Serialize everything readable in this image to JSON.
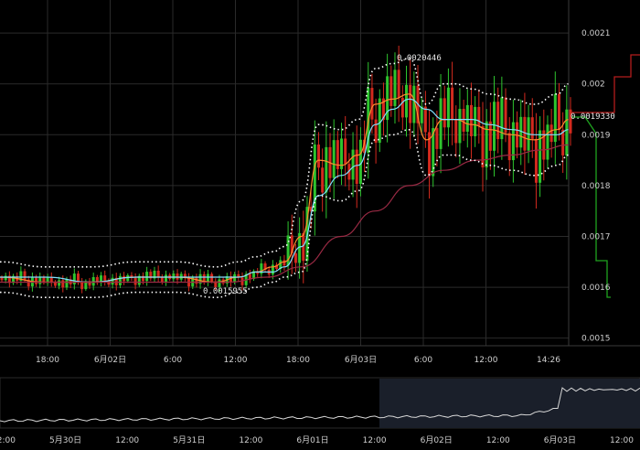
{
  "chart_data": {
    "type": "candlestick",
    "title": "",
    "price_axis": {
      "ticks": [
        "0.0015",
        "0.0016",
        "0.0017",
        "0.0018",
        "0.0019",
        "0.002",
        "0.0021"
      ],
      "ylim": [
        0.001485,
        0.002165
      ]
    },
    "time_axis": {
      "ticks": [
        "18:00",
        "6月02日",
        "6:00",
        "12:00",
        "18:00",
        "6月03日",
        "6:00",
        "12:00",
        "14:26"
      ]
    },
    "price_label": "0.0019330",
    "high_label": "0.0020446",
    "low_label": "0.0015955",
    "colors": {
      "up": "#2ec42e",
      "down": "#d42a1e",
      "ma_fast": "#ff8c2e",
      "ma_mid": "#7fe0ff",
      "ma_slow": "#9a2a44",
      "band": "#ffffff",
      "depth_bid": "#1fa31f",
      "depth_ask": "#b31c1c",
      "grid": "#2a2a2a"
    },
    "series": [
      {
        "x": [
          0,
          0.08,
          0.16,
          0.24,
          0.31,
          0.38,
          0.42,
          0.45,
          0.48,
          0.5,
          0.53,
          0.56,
          0.6,
          0.63,
          0.66,
          0.69,
          0.72,
          0.75,
          0.78,
          0.8,
          0.83,
          0.86,
          0.9,
          0.94,
          0.98,
          1.0
        ],
        "values": [
          0.00162,
          0.00161,
          0.00161,
          0.00162,
          0.00162,
          0.00161,
          0.00162,
          0.00163,
          0.00164,
          0.00165,
          0.0017,
          0.00185,
          0.00184,
          0.00186,
          0.00196,
          0.00197,
          0.00198,
          0.00189,
          0.00193,
          0.00193,
          0.00192,
          0.00191,
          0.0019,
          0.00189,
          0.00191,
          0.00193
        ]
      },
      {
        "x": [
          0,
          0.08,
          0.16,
          0.24,
          0.31,
          0.38,
          0.42,
          0.45,
          0.48,
          0.5,
          0.53,
          0.56,
          0.6,
          0.63,
          0.66,
          0.69,
          0.72,
          0.75,
          0.78,
          0.8,
          0.83,
          0.86,
          0.9,
          0.94,
          0.98,
          1.0
        ],
        "values": [
          0.00162,
          0.00162,
          0.00161,
          0.00162,
          0.00162,
          0.00162,
          0.00162,
          0.00163,
          0.00163,
          0.00164,
          0.00168,
          0.00178,
          0.00182,
          0.00184,
          0.00192,
          0.00195,
          0.00197,
          0.00195,
          0.00193,
          0.00193,
          0.00193,
          0.00192,
          0.00191,
          0.0019,
          0.0019,
          0.00191
        ]
      },
      {
        "x": [
          0,
          0.1,
          0.2,
          0.3,
          0.4,
          0.47,
          0.53,
          0.6,
          0.66,
          0.72,
          0.78,
          0.84,
          0.9,
          0.95,
          1.0
        ],
        "values": [
          0.00161,
          0.00161,
          0.00161,
          0.00161,
          0.00161,
          0.00162,
          0.00164,
          0.0017,
          0.00175,
          0.0018,
          0.00183,
          0.00185,
          0.00186,
          0.00187,
          0.00188
        ]
      }
    ],
    "overview": {
      "date_ticks": [
        "12:00",
        "5月30日",
        "12:00",
        "5月31日",
        "12:00",
        "6月01日",
        "12:00",
        "6月02日",
        "12:00",
        "6月03日",
        "12:00"
      ]
    }
  }
}
